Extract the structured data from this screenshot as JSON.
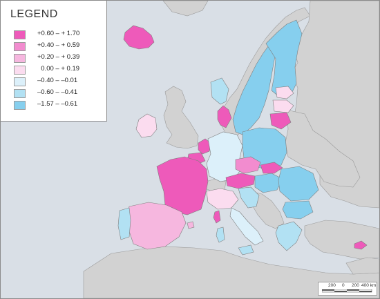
{
  "legend": {
    "title": "LEGEND",
    "entries": [
      {
        "label": "+0.60 – + 1.70",
        "color": "#ee5aba"
      },
      {
        "label": "+0.40 – + 0.59",
        "color": "#f28ccf"
      },
      {
        "label": "+0.20 – + 0.39",
        "color": "#f6b7df"
      },
      {
        "label": "  0.00 – + 0.19",
        "color": "#fbdcef"
      },
      {
        "label": "–0.40 – –0.01",
        "color": "#dcf0fa"
      },
      {
        "label": "–0.60 – –0.41",
        "color": "#b2e1f3"
      },
      {
        "label": "–1.57 – –0.61",
        "color": "#86cfee"
      }
    ]
  },
  "scale_bar": {
    "labels": [
      "200",
      "0",
      "200",
      "400 km"
    ]
  },
  "colors": {
    "sea": "#d9dfe6",
    "land_no_data": "#d2d2d2",
    "border": "#7f7f7f"
  }
}
